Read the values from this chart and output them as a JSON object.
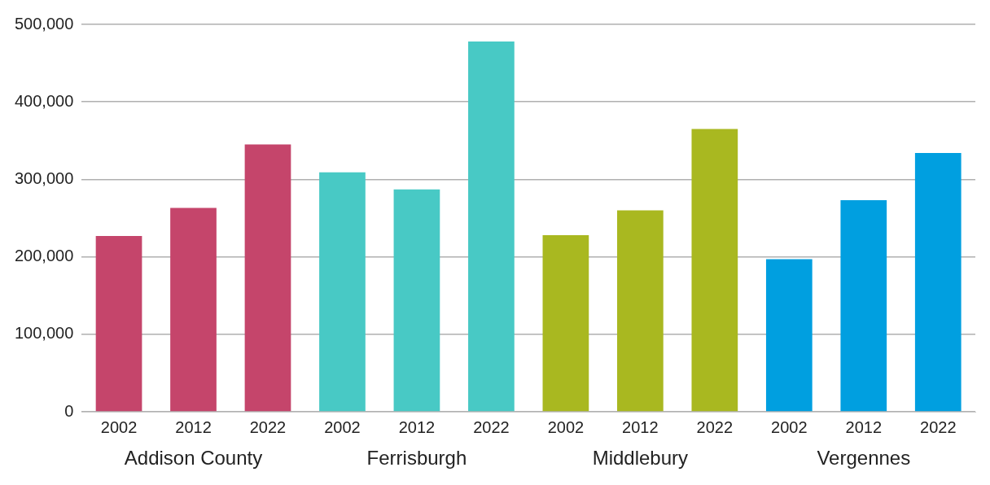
{
  "chart_data": {
    "type": "bar",
    "categories": [
      "2002",
      "2012",
      "2022",
      "2002",
      "2012",
      "2022",
      "2002",
      "2012",
      "2022",
      "2002",
      "2012",
      "2022"
    ],
    "series": [
      {
        "name": "Addison County",
        "color": "#c5456b",
        "values": [
          227000,
          263000,
          345000,
          null,
          null,
          null,
          null,
          null,
          null,
          null,
          null,
          null
        ]
      },
      {
        "name": "Ferrisburgh",
        "color": "#48c9c5",
        "values": [
          null,
          null,
          null,
          309000,
          287000,
          478000,
          null,
          null,
          null,
          null,
          null,
          null
        ]
      },
      {
        "name": "Middlebury",
        "color": "#a9b820",
        "values": [
          null,
          null,
          null,
          null,
          null,
          null,
          228000,
          260000,
          365000,
          null,
          null,
          null
        ]
      },
      {
        "name": "Vergennes",
        "color": "#009fe0",
        "values": [
          null,
          null,
          null,
          null,
          null,
          null,
          null,
          null,
          null,
          197000,
          273000,
          334000
        ]
      }
    ],
    "ylim": [
      0,
      500000
    ],
    "yticks": [
      0,
      {
        "value": 100000,
        "label": "100,000"
      },
      {
        "value": 200000,
        "label": "200,000"
      },
      {
        "value": 300000,
        "label": "300,000"
      },
      {
        "value": 400000,
        "label": "400,000"
      },
      {
        "value": 500000,
        "label": "500,000"
      }
    ],
    "grid": "y",
    "legend": false
  }
}
